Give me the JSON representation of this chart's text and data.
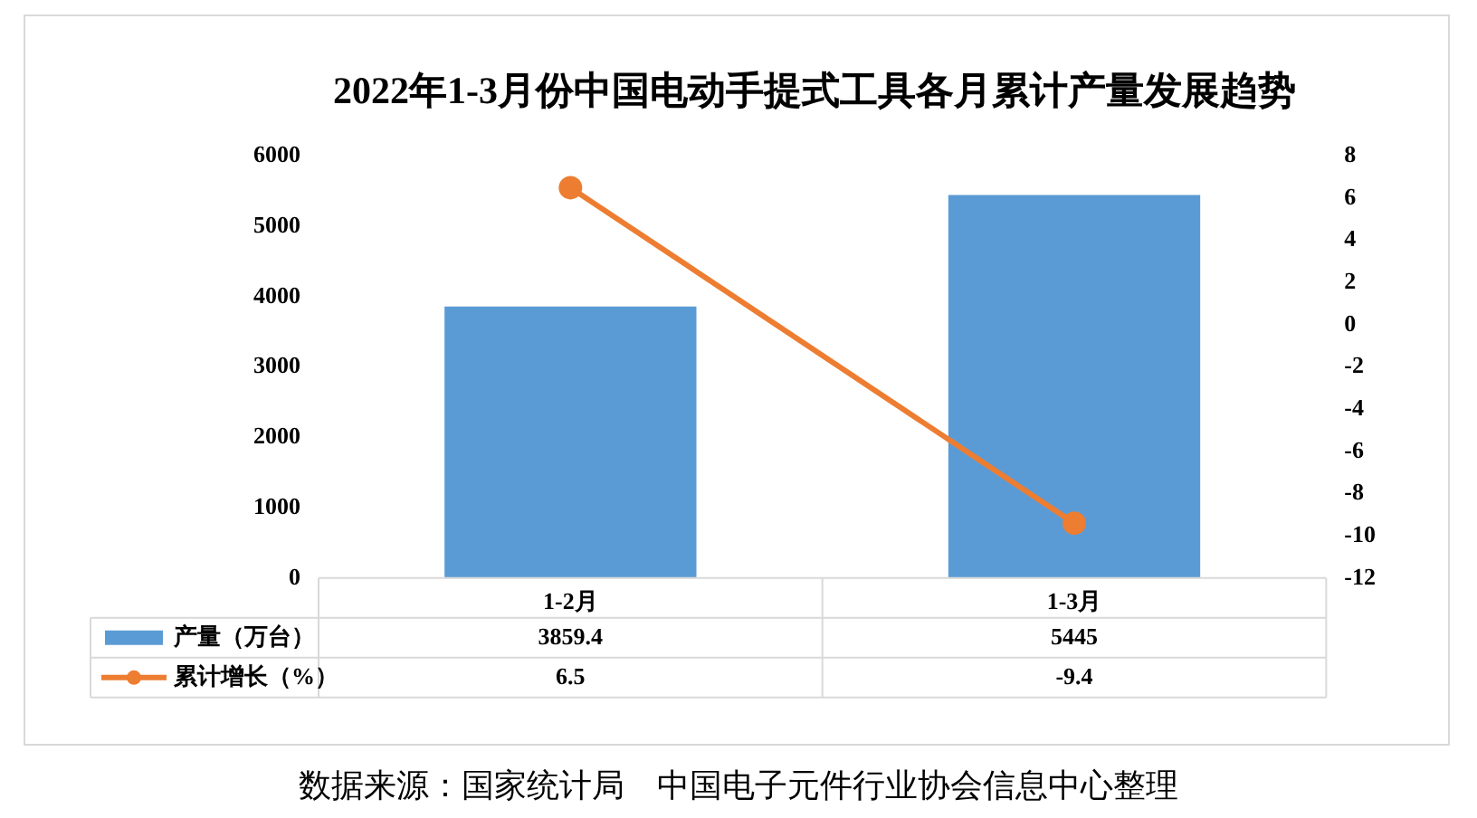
{
  "chart_data": {
    "type": "bar",
    "title": "2022年1-3月份中国电动手提式工具各月累计产量发展趋势",
    "categories": [
      "1-2月",
      "1-3月"
    ],
    "series": [
      {
        "name": "产量（万台）",
        "color": "#5b9bd5",
        "values": [
          3859.4,
          5445
        ]
      },
      {
        "name": "累计增长（%）",
        "type": "line",
        "color": "#ed7d31",
        "axis": "y2",
        "marker": "circle",
        "values": [
          6.5,
          -9.4
        ]
      }
    ],
    "ylim": [
      0,
      6000
    ],
    "yticks": [
      0,
      1000,
      2000,
      3000,
      4000,
      5000,
      6000
    ],
    "y2lim": [
      -12,
      8
    ],
    "y2ticks": [
      -12,
      -10,
      -8,
      -6,
      -4,
      -2,
      0,
      2,
      4,
      6,
      8
    ],
    "data_labels": true,
    "legend": "bottom",
    "grid": false,
    "annotations": [
      "数据来源：国家统计局　中国电子元件行业协会信息中心整理"
    ]
  }
}
